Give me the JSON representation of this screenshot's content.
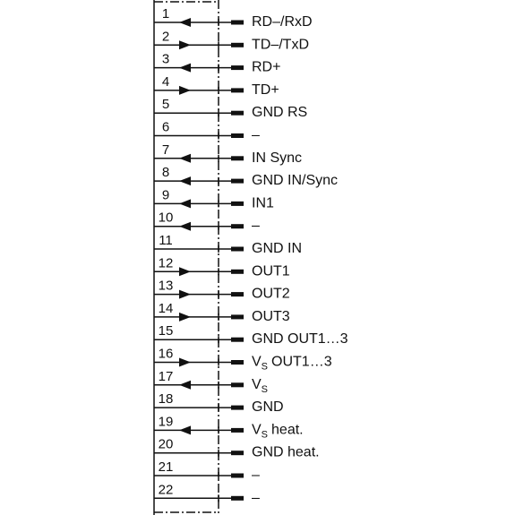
{
  "pins": [
    {
      "number": "1",
      "label": "RD–/RxD",
      "arrow": "left"
    },
    {
      "number": "2",
      "label": "TD–/TxD",
      "arrow": "right"
    },
    {
      "number": "3",
      "label": "RD+",
      "arrow": "left"
    },
    {
      "number": "4",
      "label": "TD+",
      "arrow": "right"
    },
    {
      "number": "5",
      "label": "GND RS",
      "arrow": "none"
    },
    {
      "number": "6",
      "label": "–",
      "arrow": "none"
    },
    {
      "number": "7",
      "label": "IN Sync",
      "arrow": "left"
    },
    {
      "number": "8",
      "label": "GND IN/Sync",
      "arrow": "left"
    },
    {
      "number": "9",
      "label": "IN1",
      "arrow": "left"
    },
    {
      "number": "10",
      "label": "–",
      "arrow": "left"
    },
    {
      "number": "11",
      "label": "GND IN",
      "arrow": "none"
    },
    {
      "number": "12",
      "label": "OUT1",
      "arrow": "right"
    },
    {
      "number": "13",
      "label": "OUT2",
      "arrow": "right"
    },
    {
      "number": "14",
      "label": "OUT3",
      "arrow": "right"
    },
    {
      "number": "15",
      "label": "GND OUT1…3",
      "arrow": "none"
    },
    {
      "number": "16",
      "label": "V",
      "sub": "S",
      "suffix": "OUT1…3",
      "arrow": "right"
    },
    {
      "number": "17",
      "label": "V",
      "sub": "S",
      "arrow": "left"
    },
    {
      "number": "18",
      "label": "GND",
      "arrow": "none"
    },
    {
      "number": "19",
      "label": "V",
      "sub": "S",
      "suffix": "heat.",
      "arrow": "left"
    },
    {
      "number": "20",
      "label": "GND heat.",
      "arrow": "none"
    },
    {
      "number": "21",
      "label": "–",
      "arrow": "none"
    },
    {
      "number": "22",
      "label": "–",
      "arrow": "none"
    }
  ]
}
